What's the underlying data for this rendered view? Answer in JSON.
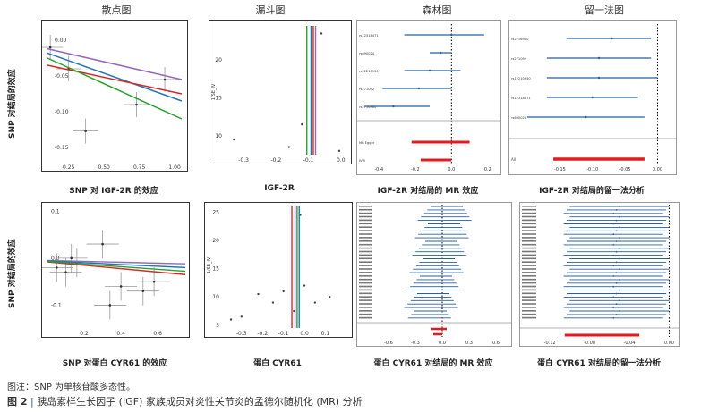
{
  "headers": [
    "散点图",
    "漏斗图",
    "森林图",
    "留一法图"
  ],
  "row1": {
    "scatter_xlabel": "SNP 对 IGF-2R 的效应",
    "scatter_ylabel": "SNP 对结局的效应",
    "funnel_xlabel": "IGF-2R",
    "forest_xlabel": "IGF-2R 对结局的 MR 效应",
    "loo_xlabel": "IGF-2R 对结局的留一法分析"
  },
  "row2": {
    "scatter_xlabel": "SNP 对蛋白 CYR61 的效应",
    "scatter_ylabel": "SNP 对结局的效应",
    "funnel_xlabel": "蛋白 CYR61",
    "forest_xlabel": "蛋白 CYR61 对结局的 MR 效应",
    "loo_xlabel": "蛋白 CYR61 对结局的留一法分析"
  },
  "note": "图注：SNP 为单核苷酸多态性。",
  "figure_caption_label": "图 2",
  "figure_caption_text": "胰岛素样生长因子 (IGF) 家族成员对炎性关节炎的孟德尔随机化 (MR) 分析",
  "colors": {
    "ivw": "#d62728",
    "egger": "#1f77b4",
    "median": "#2ca02c",
    "mode": "#9467bd",
    "forest": "#2a5d9b",
    "summary": "#e41a1c"
  },
  "chart_data": [
    {
      "type": "scatter",
      "panel": "row1-scatter",
      "x": [
        0.12,
        0.25,
        0.37,
        0.73,
        0.93
      ],
      "y": [
        -0.01,
        -0.04,
        -0.127,
        -0.09,
        -0.055
      ],
      "xticks": [
        "0.25",
        "0.50",
        "0.75",
        "1.00"
      ],
      "yticks": [
        "0.00",
        "-0.05",
        "-0.10",
        "-0.15"
      ],
      "xlim": [
        0.1,
        1.05
      ],
      "ylim": [
        -0.175,
        0.02
      ]
    },
    {
      "type": "scatter",
      "panel": "row1-funnel",
      "xticks": [
        "-0.3",
        "-0.2",
        "-0.1",
        "0.0"
      ],
      "yticks": [
        "10",
        "15",
        "20"
      ],
      "ylabel": "1/SE_IV",
      "x": [
        -0.33,
        -0.16,
        -0.12,
        -0.06,
        -0.005
      ],
      "y": [
        9.5,
        8.5,
        11.5,
        23.5,
        8.0
      ],
      "xlim": [
        -0.35,
        0.02
      ],
      "ylim": [
        7.5,
        24.5
      ]
    },
    {
      "type": "scatter",
      "panel": "row1-forest",
      "snps": [
        "rs12318471",
        "rs690024",
        "rs12210950",
        "rs271092",
        "rs2716960"
      ],
      "summary": [
        "MR Egger",
        "IVW"
      ],
      "xticks": [
        "-0.4",
        "-0.2",
        "0.0",
        "0.2"
      ],
      "xlim": [
        -0.5,
        0.25
      ]
    },
    {
      "type": "scatter",
      "panel": "row1-loo",
      "snps": [
        "rs2716960",
        "rs271092",
        "rs12210950",
        "rs12318471",
        "rs690024"
      ],
      "summary": [
        "All"
      ],
      "xticks": [
        "-0.15",
        "-0.10",
        "-0.05",
        "0.00"
      ],
      "xlim": [
        -0.2,
        0.02
      ]
    },
    {
      "type": "scatter",
      "panel": "row2-scatter",
      "x": [
        0.05,
        0.1,
        0.13,
        0.16,
        0.3,
        0.34,
        0.4,
        0.52,
        0.58
      ],
      "y": [
        -0.02,
        -0.03,
        0.0,
        -0.01,
        0.03,
        -0.1,
        -0.06,
        -0.07,
        -0.05
      ],
      "xticks": [
        "0.2",
        "0.4",
        "0.6"
      ],
      "yticks": [
        "0.1",
        "0.0",
        "-0.1"
      ],
      "xlim": [
        0.0,
        0.75
      ],
      "ylim": [
        -0.16,
        0.11
      ]
    },
    {
      "type": "scatter",
      "panel": "row2-funnel",
      "xticks": [
        "-0.3",
        "-0.2",
        "-0.1",
        "0.0",
        "0.1"
      ],
      "yticks": [
        "5",
        "10",
        "15",
        "20",
        "25"
      ],
      "ylabel": "1/SE_IV",
      "x": [
        -0.35,
        -0.3,
        -0.22,
        -0.15,
        -0.1,
        -0.05,
        0.0,
        0.05,
        0.12,
        -0.02
      ],
      "y": [
        6,
        6.5,
        10.5,
        9,
        11,
        7.5,
        12,
        9,
        10,
        24.5
      ],
      "xlim": [
        -0.38,
        0.2
      ],
      "ylim": [
        4.5,
        26
      ]
    },
    {
      "type": "scatter",
      "panel": "row2-forest",
      "xticks": [
        "-0.6",
        "-0.3",
        "0.0",
        "0.3",
        "0.6"
      ],
      "xlim": [
        -0.75,
        0.75
      ],
      "snp_count": 33,
      "summary": [
        "MR Egger",
        "IVW"
      ]
    },
    {
      "type": "scatter",
      "panel": "row2-loo",
      "xticks": [
        "-0.12",
        "-0.08",
        "-0.04",
        "0.00"
      ],
      "xlim": [
        -0.13,
        0.005
      ],
      "snp_count": 33,
      "summary": [
        "All"
      ]
    }
  ]
}
